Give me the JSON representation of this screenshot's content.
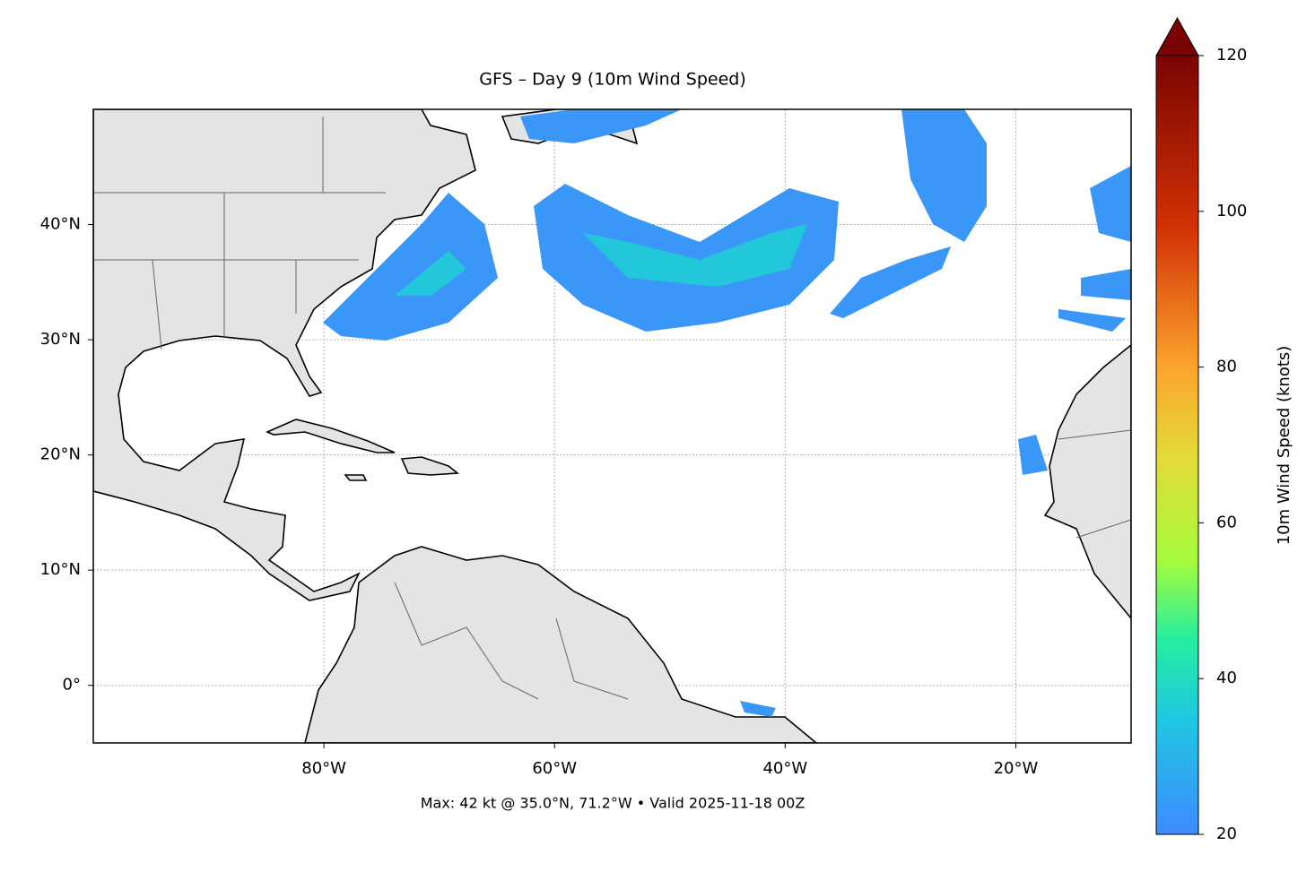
{
  "chart_data": {
    "type": "map",
    "title": "GFS – Day 9 (10m Wind Speed)",
    "annotation": "Max: 42 kt @ 35.0°N, 71.2°W • Valid 2025-11-18 00Z",
    "xlim": [
      -100,
      -10
    ],
    "ylim": [
      -5,
      50
    ],
    "xticks": [
      {
        "value": -80,
        "label": "80°W"
      },
      {
        "value": -60,
        "label": "60°W"
      },
      {
        "value": -40,
        "label": "40°W"
      },
      {
        "value": -20,
        "label": "20°W"
      }
    ],
    "yticks": [
      {
        "value": 0,
        "label": "0°"
      },
      {
        "value": 10,
        "label": "10°N"
      },
      {
        "value": 20,
        "label": "20°N"
      },
      {
        "value": 30,
        "label": "30°N"
      },
      {
        "value": 40,
        "label": "40°N"
      }
    ],
    "grid": true,
    "colorbar": {
      "label": "10m Wind Speed (knots)",
      "lim": [
        20,
        120
      ],
      "ticks": [
        20,
        40,
        60,
        80,
        100,
        120
      ]
    }
  }
}
